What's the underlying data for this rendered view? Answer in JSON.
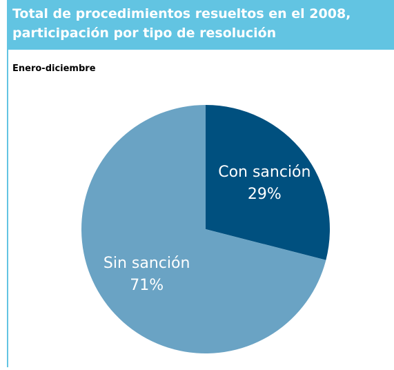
{
  "chart_data": {
    "type": "pie",
    "title": "Total de procedimientos resueltos en el 2008,\nparticipación por tipo de resolución",
    "subtitle": "Enero-diciembre",
    "categories": [
      "Con sanción",
      "Sin sanción"
    ],
    "values": [
      29,
      71
    ],
    "value_labels": [
      "29%",
      "71%"
    ],
    "colors": [
      "#00507f",
      "#6aa3c4"
    ]
  }
}
